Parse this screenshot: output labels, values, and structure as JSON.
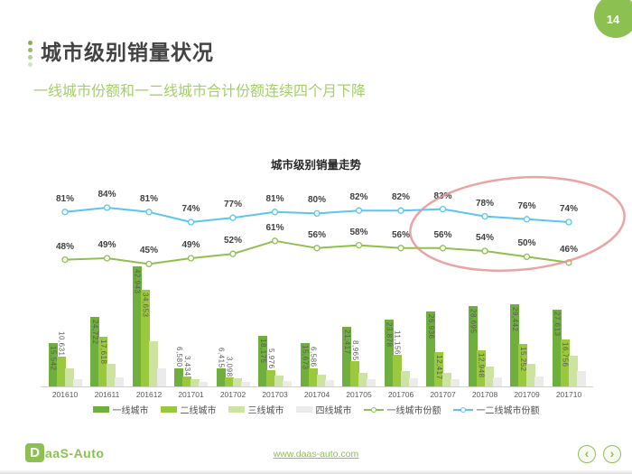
{
  "page": {
    "number": "14"
  },
  "header": {
    "title": "城市级别销量状况",
    "subtitle": "一线城市份额和一二线城市合计份额连续四个月下降"
  },
  "chart_data": {
    "type": "combo-bar-line",
    "title": "城市级别销量走势",
    "categories": [
      "201610",
      "201611",
      "201612",
      "201701",
      "201702",
      "201703",
      "201704",
      "201705",
      "201706",
      "201707",
      "201708",
      "201709",
      "201710"
    ],
    "bar_series": [
      {
        "name": "一线城市",
        "color": "#6faf3d",
        "labels_visible": true,
        "values": [
          15542,
          24722,
          42943,
          6580,
          6415,
          18175,
          15673,
          21417,
          23878,
          26936,
          28695,
          29442,
          27613
        ]
      },
      {
        "name": "二线城市",
        "color": "#9bc93e",
        "labels_visible": true,
        "values": [
          10631,
          17618,
          34653,
          3434,
          3098,
          5976,
          6586,
          8965,
          11156,
          12417,
          12948,
          15252,
          16756
        ]
      },
      {
        "name": "三线城市",
        "color": "#cde4a0",
        "labels_visible": false,
        "estimated": true,
        "values": [
          6400,
          8000,
          16000,
          2500,
          2800,
          3800,
          4200,
          4800,
          5400,
          4800,
          7000,
          8000,
          11000
        ]
      },
      {
        "name": "四线城市",
        "color": "#ebebe9",
        "labels_visible": false,
        "estimated": true,
        "values": [
          2600,
          3200,
          6400,
          1600,
          1600,
          1900,
          2200,
          2600,
          2900,
          2600,
          3200,
          3500,
          5500
        ]
      }
    ],
    "line_series": [
      {
        "name": "一线城市份额",
        "color": "#8ebf4f",
        "values_pct": [
          48,
          49,
          45,
          49,
          52,
          61,
          56,
          58,
          56,
          56,
          54,
          50,
          46
        ]
      },
      {
        "name": "一二线城市份额",
        "color": "#5bc5ef",
        "values_pct": [
          81,
          84,
          81,
          74,
          77,
          81,
          80,
          82,
          82,
          83,
          78,
          76,
          74
        ]
      }
    ],
    "annotation": {
      "shape": "ellipse",
      "color": "#e59494",
      "highlights": "last four months of both share lines"
    },
    "ylim_bars": [
      0,
      45000
    ],
    "grid": false,
    "legend_position": "bottom"
  },
  "footer": {
    "logo_d": "D",
    "logo_rest": "aaS-Auto",
    "link": "www.daas-auto.com",
    "prev": "‹",
    "next": "›"
  }
}
